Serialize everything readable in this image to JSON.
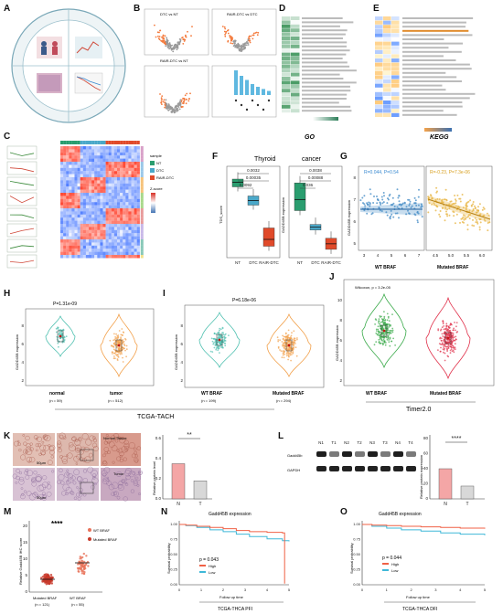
{
  "panel_letters": [
    "A",
    "B",
    "C",
    "D",
    "E",
    "F",
    "G",
    "H",
    "I",
    "J",
    "K",
    "L",
    "M",
    "N",
    "O"
  ],
  "colors": {
    "nt": "#2a9d6f",
    "dtc": "#4aa8c9",
    "rair": "#e04a2a",
    "wt": "#69b3a2",
    "mut": "#e8735a",
    "blue_scatter": "#4a90c8",
    "yellow_scatter": "#e8b84a",
    "bar_pink": "#f4a6a6",
    "km_high": "#f06045",
    "km_low": "#3fb8d8",
    "heat_red": "#d73027",
    "heat_blue": "#4575b4",
    "volcano_orange": "#f47a3c"
  },
  "panel_B": {
    "titles": [
      "DTC vs NT",
      "RAIR-DTC vs DTC",
      "RAIR-DTC vs NT"
    ]
  },
  "panel_C": {
    "legend_title": "sample",
    "legend_items": [
      "NT",
      "DTC",
      "RAIR-DTC"
    ],
    "zscore_label": "Z-score"
  },
  "panel_D": {
    "caption": "GO"
  },
  "panel_E": {
    "caption": "KEGG"
  },
  "panel_F": {
    "title_left": "Thyroid",
    "title_right": "cancer",
    "chart_data": [
      {
        "type": "box",
        "ylabel": "TDS_score",
        "categories": [
          "NT",
          "DTC",
          "RAIR-DTC"
        ],
        "medians": [
          0.55,
          0.15,
          -0.7
        ],
        "q1": [
          0.45,
          0.05,
          -0.85
        ],
        "q3": [
          0.62,
          0.25,
          -0.45
        ],
        "pvalues": [
          "0.0032",
          "0.00035",
          "0.0092"
        ]
      },
      {
        "type": "box",
        "ylabel": "GADD45B expression",
        "categories": [
          "NT",
          "DTC",
          "RAIR-DTC"
        ],
        "medians": [
          6.4,
          5.4,
          4.8
        ],
        "q1": [
          6.0,
          5.3,
          4.6
        ],
        "q3": [
          7.0,
          5.5,
          5.0
        ],
        "pvalues": [
          "0.0038",
          "0.00088",
          "0.036"
        ]
      }
    ]
  },
  "panel_G": {
    "chart_data": {
      "type": "scatter",
      "ylabel": "GADD45B expression",
      "xlabel_left": "WT BRAF",
      "xlabel_right": "Mutated BRAF",
      "stat_left": "R=0.044, P=0.54",
      "stat_right": "R=-0.23, P=7.3e-06",
      "left_xticks": [
        "3",
        "4",
        "5",
        "6",
        "7"
      ],
      "right_xticks": [
        "4.5",
        "5.0",
        "5.5",
        "6.0"
      ],
      "yticks": [
        "5",
        "6",
        "7",
        "8"
      ]
    }
  },
  "panel_H": {
    "chart_data": {
      "type": "violin",
      "pvalue": "P=1.31e-09",
      "ylabel": "GADD45B expression",
      "categories": [
        "normal",
        "tumor"
      ],
      "ns": [
        "(n = 59)",
        "(n = 512)"
      ],
      "medians": [
        7.0,
        6.0
      ],
      "yticks": [
        "2",
        "4",
        "6",
        "8"
      ]
    },
    "footer": "TCGA-TACH"
  },
  "panel_I": {
    "chart_data": {
      "type": "violin",
      "pvalue": "P=6.18e-06",
      "ylabel": "GADD45B expression",
      "categories": [
        "WT BRAF",
        "Mutated BRAF"
      ],
      "ns": [
        "(n = 199)",
        "(n = 294)"
      ],
      "medians": [
        6.5,
        6.0
      ],
      "yticks": [
        "2",
        "4",
        "6",
        "8"
      ]
    }
  },
  "panel_J": {
    "chart_data": {
      "type": "violin",
      "pvalue": "Wilcoxon, p = 3.2e-05",
      "ylabel": "GADD45B expression",
      "categories": [
        "WT BRAF",
        "Mutated BRAF"
      ],
      "yticks": [
        "2",
        "4",
        "6",
        "8",
        "10"
      ]
    },
    "footer": "Timer2.0"
  },
  "panel_K": {
    "labels": [
      "Normal Tissue",
      "Tumor"
    ],
    "scale": "50μm",
    "chart_data": {
      "type": "bar",
      "ylabel": "Relative protein level",
      "categories": [
        "N",
        "T"
      ],
      "values": [
        0.35,
        0.18
      ],
      "significance": "**",
      "yticks": [
        "0.0",
        "0.2",
        "0.4",
        "0.6"
      ]
    }
  },
  "panel_L": {
    "lanes": [
      "N1",
      "T1",
      "N2",
      "T2",
      "N3",
      "T3",
      "N4",
      "T4"
    ],
    "rows": [
      "Gadd45b",
      "GAPDH"
    ],
    "chart_data": {
      "type": "bar",
      "ylabel": "Relative protein expression",
      "categories": [
        "N",
        "T"
      ],
      "values": [
        40,
        17
      ],
      "significance": "****",
      "yticks": [
        "0",
        "20",
        "40",
        "60",
        "80"
      ]
    }
  },
  "panel_M": {
    "chart_data": {
      "type": "scatter",
      "ylabel": "Relative Gadd45B IHC score",
      "categories": [
        "Mutated BRAF",
        "WT BRAF"
      ],
      "ns": [
        "(n = 121)",
        "(n = 55)"
      ],
      "legend": [
        "WT BRAF",
        "Mutated BRAF"
      ],
      "significance": "****",
      "yticks": [
        "0",
        "5",
        "10",
        "15",
        "20"
      ]
    }
  },
  "panel_N": {
    "title": "Gadd45B expression",
    "chart_data": {
      "type": "line",
      "ylabel": "Survival probability",
      "xlabel": "Follow up time",
      "pvalue": "p = 0.043",
      "legend": [
        "High",
        "Low"
      ],
      "yticks": [
        "0.00",
        "0.25",
        "0.50",
        "0.75",
        "1.00"
      ],
      "xticks": [
        "0",
        "1",
        "2",
        "3",
        "4",
        "5"
      ]
    },
    "footer": "TCGA-THCA PFI"
  },
  "panel_O": {
    "title": "Gadd45B expression",
    "chart_data": {
      "type": "line",
      "ylabel": "Survival probability",
      "xlabel": "Follow up time",
      "pvalue": "p = 0.044",
      "legend": [
        "High",
        "Low"
      ],
      "yticks": [
        "0.00",
        "0.25",
        "0.50",
        "0.75",
        "1.00"
      ],
      "xticks": [
        "0",
        "1",
        "2",
        "3",
        "4",
        "5"
      ]
    },
    "footer": "TCGA-THCA DFI"
  }
}
